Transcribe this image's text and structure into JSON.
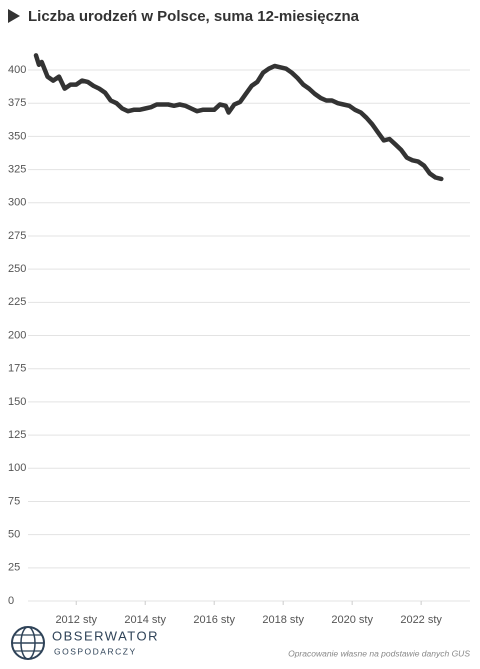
{
  "chart_data": {
    "type": "line",
    "title": "Liczba urodzeń w Polsce, suma 12-miesięczna",
    "x": [
      "2010-11",
      "2010-12",
      "2011-01",
      "2011-03",
      "2011-05",
      "2011-07",
      "2011-09",
      "2011-11",
      "2012-01",
      "2012-03",
      "2012-05",
      "2012-07",
      "2012-09",
      "2012-11",
      "2013-01",
      "2013-03",
      "2013-05",
      "2013-07",
      "2013-09",
      "2013-11",
      "2014-01",
      "2014-03",
      "2014-05",
      "2014-07",
      "2014-09",
      "2014-11",
      "2015-01",
      "2015-03",
      "2015-05",
      "2015-07",
      "2015-09",
      "2016-01",
      "2016-03",
      "2016-05",
      "2016-06",
      "2016-08",
      "2016-10",
      "2016-12",
      "2017-02",
      "2017-04",
      "2017-06",
      "2017-08",
      "2017-10",
      "2017-12",
      "2018-02",
      "2018-04",
      "2018-06",
      "2018-08",
      "2018-10",
      "2018-12",
      "2019-02",
      "2019-04",
      "2019-06",
      "2019-08",
      "2019-10",
      "2019-12",
      "2020-02",
      "2020-04",
      "2020-06",
      "2020-08",
      "2020-10",
      "2020-12",
      "2021-02",
      "2021-04",
      "2021-06",
      "2021-08",
      "2021-10",
      "2021-12",
      "2022-02",
      "2022-04",
      "2022-06",
      "2022-08"
    ],
    "series": [
      {
        "color": "#333333",
        "values": [
          411,
          404,
          406,
          395,
          392,
          395,
          386,
          389,
          389,
          392,
          391,
          388,
          386,
          383,
          377,
          375,
          371,
          369,
          370,
          370,
          371,
          372,
          374,
          374,
          374,
          373,
          374,
          373,
          371,
          369,
          370,
          370,
          374,
          373,
          368,
          374,
          376,
          382,
          388,
          391,
          398,
          401,
          403,
          402,
          401,
          398,
          394,
          389,
          386,
          382,
          379,
          377,
          377,
          375,
          374,
          373,
          370,
          368,
          364,
          359,
          353,
          347,
          348,
          344,
          340,
          334,
          332,
          331,
          328,
          322,
          319,
          318
        ]
      }
    ],
    "xlim": [
      "2010-11",
      "2023-06"
    ],
    "xticks": [
      {
        "value": "2012-01",
        "label": "2012 sty"
      },
      {
        "value": "2014-01",
        "label": "2014 sty"
      },
      {
        "value": "2016-01",
        "label": "2016 sty"
      },
      {
        "value": "2018-01",
        "label": "2018 sty"
      },
      {
        "value": "2020-01",
        "label": "2020 sty"
      },
      {
        "value": "2022-01",
        "label": "2022 sty"
      }
    ],
    "ylim": [
      0,
      400
    ],
    "yticks": [
      0,
      25,
      50,
      75,
      100,
      125,
      150,
      175,
      200,
      225,
      250,
      275,
      300,
      325,
      350,
      375,
      400
    ],
    "grid": true,
    "source": "Opracowanie własne na podstawie danych GUS"
  },
  "brand": {
    "name": "OBSERWATOR",
    "tagline": "GOSPODARCZY"
  }
}
